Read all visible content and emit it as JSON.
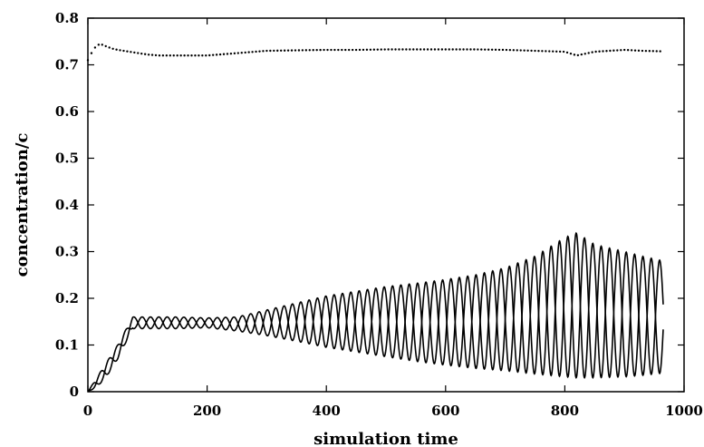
{
  "chart_data": {
    "type": "line",
    "xlabel": "simulation time",
    "ylabel": "concentration/c",
    "xlim": [
      0,
      1000
    ],
    "ylim": [
      0,
      0.8
    ],
    "xticks": [
      0,
      200,
      400,
      600,
      800,
      1000
    ],
    "yticks": [
      0,
      0.1,
      0.2,
      0.3,
      0.4,
      0.5,
      0.6,
      0.7,
      0.8
    ],
    "xtick_labels": [
      "0",
      "200",
      "400",
      "600",
      "800",
      "1000"
    ],
    "ytick_labels": [
      "0",
      "0.1",
      "0.2",
      "0.3",
      "0.4",
      "0.5",
      "0.6",
      "0.7",
      "0.8"
    ],
    "grid": false,
    "legend": false,
    "series": [
      {
        "style": "dotted",
        "x": [
          0,
          10,
          20,
          30,
          40,
          50,
          60,
          70,
          80,
          100,
          120,
          140,
          160,
          180,
          200,
          220,
          240,
          260,
          280,
          300,
          350,
          400,
          450,
          500,
          550,
          600,
          650,
          700,
          750,
          800,
          820,
          850,
          900,
          930,
          960
        ],
        "y": [
          0.71,
          0.735,
          0.745,
          0.74,
          0.735,
          0.732,
          0.73,
          0.728,
          0.726,
          0.722,
          0.72,
          0.72,
          0.72,
          0.72,
          0.72,
          0.722,
          0.724,
          0.726,
          0.728,
          0.73,
          0.731,
          0.732,
          0.732,
          0.733,
          0.733,
          0.733,
          0.733,
          0.732,
          0.73,
          0.728,
          0.72,
          0.728,
          0.732,
          0.73,
          0.729
        ]
      },
      {
        "style": "oscillating-solid",
        "x": [
          0,
          15,
          30,
          50,
          75,
          100,
          150,
          200,
          250,
          300,
          350,
          400,
          450,
          500,
          550,
          600,
          650,
          700,
          750,
          800,
          820,
          850,
          900,
          930,
          965
        ],
        "upper": [
          0.0,
          0.03,
          0.06,
          0.1,
          0.16,
          0.16,
          0.16,
          0.158,
          0.16,
          0.175,
          0.19,
          0.205,
          0.215,
          0.225,
          0.232,
          0.24,
          0.25,
          0.265,
          0.29,
          0.33,
          0.34,
          0.315,
          0.3,
          0.29,
          0.28
        ],
        "lower": [
          0.0,
          0.01,
          0.03,
          0.07,
          0.135,
          0.135,
          0.135,
          0.137,
          0.13,
          0.12,
          0.108,
          0.095,
          0.085,
          0.075,
          0.065,
          0.057,
          0.05,
          0.045,
          0.038,
          0.032,
          0.03,
          0.03,
          0.032,
          0.035,
          0.04
        ],
        "period": 28
      }
    ]
  }
}
